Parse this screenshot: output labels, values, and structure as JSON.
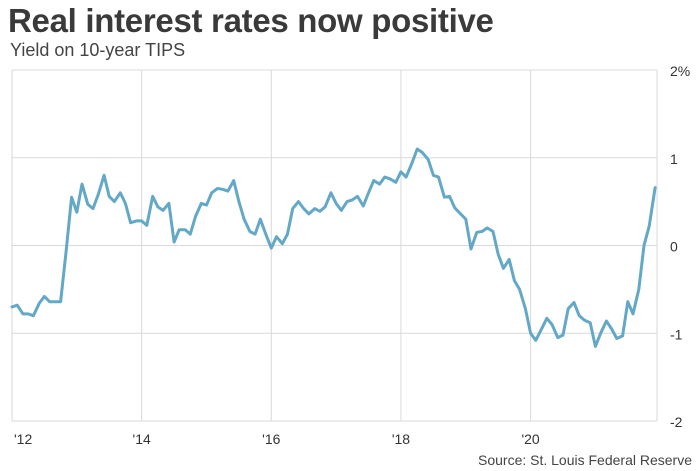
{
  "header": {
    "title": "Real interest rates now positive",
    "subtitle": "Yield on 10-year TIPS"
  },
  "footer": {
    "source": "Source: St. Louis Federal Reserve"
  },
  "colors": {
    "line": "#63a9c7",
    "grid": "#d9d9d9",
    "axis": "#bdbdbd"
  },
  "chart_data": {
    "type": "line",
    "title": "Real interest rates now positive",
    "subtitle": "Yield on 10-year TIPS",
    "xlabel": "",
    "ylabel": "",
    "ylim": [
      -2,
      2
    ],
    "xlim": [
      2012,
      2021.95
    ],
    "y_ticks": [
      {
        "value": 2,
        "label": "2%"
      },
      {
        "value": 1,
        "label": "1"
      },
      {
        "value": 0,
        "label": "0"
      },
      {
        "value": -1,
        "label": "-1"
      },
      {
        "value": -2,
        "label": "-2"
      }
    ],
    "x_ticks": [
      {
        "value": 2012,
        "label": "'12"
      },
      {
        "value": 2014,
        "label": "'14"
      },
      {
        "value": 2016,
        "label": "'16"
      },
      {
        "value": 2018,
        "label": "'18"
      },
      {
        "value": 2020,
        "label": "'20"
      }
    ],
    "grid": true,
    "legend": "none",
    "series": [
      {
        "x": [
          2012.0,
          2012.08,
          2012.17,
          2012.25,
          2012.33,
          2012.42,
          2012.5,
          2012.58,
          2012.67,
          2012.75,
          2012.83,
          2012.92,
          2013.0,
          2013.08,
          2013.17,
          2013.25,
          2013.33,
          2013.42,
          2013.5,
          2013.58,
          2013.67,
          2013.75,
          2013.83,
          2013.92,
          2014.0,
          2014.08,
          2014.17,
          2014.25,
          2014.33,
          2014.42,
          2014.5,
          2014.58,
          2014.67,
          2014.75,
          2014.83,
          2014.92,
          2015.0,
          2015.08,
          2015.17,
          2015.25,
          2015.33,
          2015.42,
          2015.5,
          2015.58,
          2015.67,
          2015.75,
          2015.83,
          2015.92,
          2016.0,
          2016.08,
          2016.17,
          2016.25,
          2016.33,
          2016.42,
          2016.5,
          2016.58,
          2016.67,
          2016.75,
          2016.83,
          2016.92,
          2017.0,
          2017.08,
          2017.17,
          2017.25,
          2017.33,
          2017.42,
          2017.5,
          2017.58,
          2017.67,
          2017.75,
          2017.83,
          2017.92,
          2018.0,
          2018.08,
          2018.17,
          2018.25,
          2018.33,
          2018.42,
          2018.5,
          2018.58,
          2018.67,
          2018.75,
          2018.83,
          2018.92,
          2019.0,
          2019.08,
          2019.17,
          2019.25,
          2019.33,
          2019.42,
          2019.5,
          2019.58,
          2019.67,
          2019.75,
          2019.83,
          2019.92,
          2020.0,
          2020.08,
          2020.17,
          2020.25,
          2020.33,
          2020.42,
          2020.5,
          2020.58,
          2020.67,
          2020.75,
          2020.83,
          2020.92,
          2021.0,
          2021.08,
          2021.17,
          2021.25,
          2021.33,
          2021.42,
          2021.5,
          2021.58,
          2021.67,
          2021.75,
          2021.83,
          2021.92
        ],
        "y": [
          -0.7,
          -0.68,
          -0.78,
          -0.78,
          -0.8,
          -0.66,
          -0.58,
          -0.64,
          -0.64,
          -0.64,
          -0.1,
          0.55,
          0.38,
          0.7,
          0.47,
          0.42,
          0.58,
          0.8,
          0.56,
          0.5,
          0.6,
          0.48,
          0.26,
          0.28,
          0.28,
          0.23,
          0.56,
          0.44,
          0.4,
          0.48,
          0.04,
          0.18,
          0.18,
          0.13,
          0.33,
          0.48,
          0.46,
          0.6,
          0.65,
          0.64,
          0.62,
          0.74,
          0.5,
          0.3,
          0.16,
          0.13,
          0.3,
          0.12,
          -0.03,
          0.1,
          0.02,
          0.13,
          0.42,
          0.5,
          0.42,
          0.36,
          0.42,
          0.39,
          0.44,
          0.6,
          0.48,
          0.4,
          0.5,
          0.52,
          0.56,
          0.45,
          0.6,
          0.74,
          0.7,
          0.78,
          0.76,
          0.72,
          0.84,
          0.78,
          0.94,
          1.1,
          1.06,
          0.98,
          0.8,
          0.78,
          0.55,
          0.56,
          0.43,
          0.36,
          0.3,
          -0.04,
          0.15,
          0.16,
          0.2,
          0.16,
          -0.1,
          -0.26,
          -0.16,
          -0.4,
          -0.5,
          -0.72,
          -1.0,
          -1.08,
          -0.95,
          -0.83,
          -0.9,
          -1.05,
          -1.02,
          -0.72,
          -0.65,
          -0.8,
          -0.85,
          -0.88,
          -1.15,
          -1.0,
          -0.86,
          -0.95,
          -1.06,
          -1.03,
          -0.64,
          -0.78,
          -0.5,
          0.0,
          0.22,
          0.66
        ]
      }
    ]
  }
}
